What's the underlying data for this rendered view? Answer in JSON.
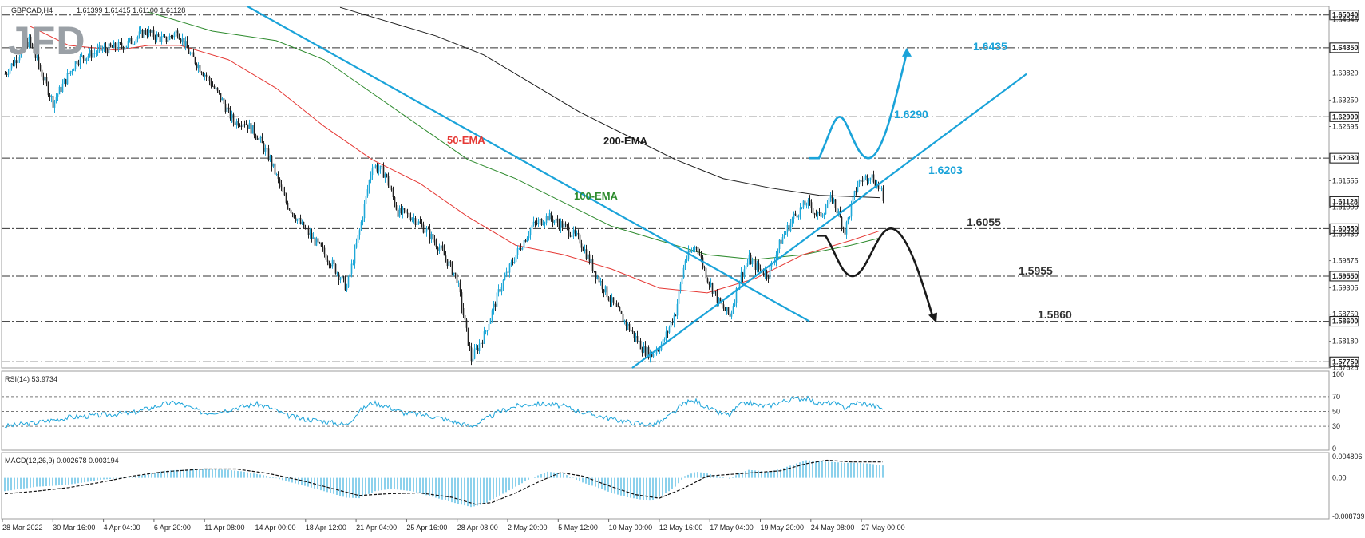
{
  "logo": "JFD",
  "chart_data": {
    "type": "candlestick",
    "symbol_header": "GBPCAD,H4",
    "ohlc_header": "1.61399 1.61415 1.61100 1.61128",
    "price_axis_ticks": [
      "1.64945",
      "1.63820",
      "1.63250",
      "1.62695",
      "1.61555",
      "1.61000",
      "1.60430",
      "1.59875",
      "1.59305",
      "1.58750",
      "1.58180",
      "1.57625"
    ],
    "levels": [
      {
        "value": 1.6504,
        "label": "1.65040"
      },
      {
        "value": 1.6435,
        "label": "1.64350"
      },
      {
        "value": 1.629,
        "label": "1.62900"
      },
      {
        "value": 1.6203,
        "label": "1.62030"
      },
      {
        "value": 1.6112,
        "label": "1.61128"
      },
      {
        "value": 1.6055,
        "label": "1.60550"
      },
      {
        "value": 1.5955,
        "label": "1.59550"
      },
      {
        "value": 1.586,
        "label": "1.58600"
      },
      {
        "value": 1.5775,
        "label": "1.57750"
      }
    ],
    "price_range": [
      1.5762,
      1.6522
    ],
    "x_ticks": [
      "28 Mar 2022",
      "30 Mar 16:00",
      "4 Apr 04:00",
      "6 Apr 20:00",
      "11 Apr 08:00",
      "14 Apr 00:00",
      "18 Apr 12:00",
      "21 Apr 04:00",
      "25 Apr 16:00",
      "28 Apr 08:00",
      "2 May 20:00",
      "5 May 12:00",
      "10 May 00:00",
      "12 May 16:00",
      "17 May 04:00",
      "19 May 20:00",
      "24 May 08:00",
      "27 May 00:00"
    ],
    "anchors": [
      [
        0,
        1.638
      ],
      [
        15,
        1.645
      ],
      [
        30,
        1.632
      ],
      [
        45,
        1.641
      ],
      [
        60,
        1.643
      ],
      [
        75,
        1.644
      ],
      [
        88,
        1.647
      ],
      [
        100,
        1.645
      ],
      [
        108,
        1.647
      ],
      [
        116,
        1.642
      ],
      [
        125,
        1.638
      ],
      [
        135,
        1.633
      ],
      [
        143,
        1.628
      ],
      [
        150,
        1.628
      ],
      [
        158,
        1.625
      ],
      [
        166,
        1.62
      ],
      [
        176,
        1.611
      ],
      [
        186,
        1.606
      ],
      [
        196,
        1.602
      ],
      [
        205,
        1.598
      ],
      [
        214,
        1.593
      ],
      [
        222,
        1.605
      ],
      [
        230,
        1.619
      ],
      [
        238,
        1.617
      ],
      [
        246,
        1.609
      ],
      [
        255,
        1.608
      ],
      [
        264,
        1.605
      ],
      [
        273,
        1.601
      ],
      [
        283,
        1.595
      ],
      [
        292,
        1.578
      ],
      [
        300,
        1.583
      ],
      [
        310,
        1.593
      ],
      [
        320,
        1.6
      ],
      [
        330,
        1.606
      ],
      [
        340,
        1.608
      ],
      [
        350,
        1.606
      ],
      [
        360,
        1.603
      ],
      [
        370,
        1.596
      ],
      [
        380,
        1.59
      ],
      [
        390,
        1.585
      ],
      [
        400,
        1.58
      ],
      [
        405,
        1.579
      ],
      [
        412,
        1.5815
      ],
      [
        420,
        1.588
      ],
      [
        426,
        1.599
      ],
      [
        433,
        1.602
      ],
      [
        440,
        1.595
      ],
      [
        447,
        1.59
      ],
      [
        454,
        1.587
      ],
      [
        460,
        1.595
      ],
      [
        466,
        1.599
      ],
      [
        472,
        1.597
      ],
      [
        478,
        1.596
      ],
      [
        486,
        1.603
      ],
      [
        494,
        1.608
      ],
      [
        502,
        1.611
      ],
      [
        510,
        1.608
      ],
      [
        518,
        1.612
      ],
      [
        526,
        1.605
      ],
      [
        534,
        1.615
      ],
      [
        542,
        1.617
      ],
      [
        550,
        1.6125
      ]
    ],
    "ema50": [
      [
        16,
        1.648
      ],
      [
        40,
        1.644
      ],
      [
        70,
        1.643
      ],
      [
        90,
        1.644
      ],
      [
        110,
        1.644
      ],
      [
        140,
        1.641
      ],
      [
        170,
        1.635
      ],
      [
        200,
        1.627
      ],
      [
        230,
        1.62
      ],
      [
        260,
        1.615
      ],
      [
        290,
        1.608
      ],
      [
        320,
        1.602
      ],
      [
        350,
        1.6
      ],
      [
        380,
        1.597
      ],
      [
        410,
        1.593
      ],
      [
        440,
        1.592
      ],
      [
        470,
        1.595
      ],
      [
        500,
        1.6
      ],
      [
        530,
        1.603
      ],
      [
        548,
        1.605
      ]
    ],
    "ema100": [
      [
        90,
        1.651
      ],
      [
        130,
        1.647
      ],
      [
        170,
        1.645
      ],
      [
        200,
        1.641
      ],
      [
        230,
        1.634
      ],
      [
        260,
        1.627
      ],
      [
        290,
        1.62
      ],
      [
        320,
        1.616
      ],
      [
        350,
        1.611
      ],
      [
        380,
        1.606
      ],
      [
        410,
        1.603
      ],
      [
        440,
        1.6
      ],
      [
        470,
        1.599
      ],
      [
        500,
        1.6
      ],
      [
        530,
        1.602
      ],
      [
        548,
        1.6035
      ]
    ],
    "ema200": [
      [
        210,
        1.652
      ],
      [
        240,
        1.649
      ],
      [
        270,
        1.646
      ],
      [
        300,
        1.642
      ],
      [
        330,
        1.636
      ],
      [
        360,
        1.63
      ],
      [
        390,
        1.625
      ],
      [
        420,
        1.62
      ],
      [
        450,
        1.616
      ],
      [
        480,
        1.614
      ],
      [
        510,
        1.6125
      ],
      [
        548,
        1.612
      ]
    ],
    "rsi": {
      "label": "RSI(14) 53.9734",
      "ticks": [
        "100",
        "70",
        "50",
        "30",
        "0"
      ],
      "levels": [
        70,
        50,
        30
      ],
      "points": [
        [
          0,
          30
        ],
        [
          20,
          35
        ],
        [
          40,
          42
        ],
        [
          60,
          45
        ],
        [
          80,
          48
        ],
        [
          100,
          60
        ],
        [
          108,
          62
        ],
        [
          116,
          55
        ],
        [
          125,
          48
        ],
        [
          135,
          50
        ],
        [
          145,
          55
        ],
        [
          158,
          60
        ],
        [
          166,
          55
        ],
        [
          176,
          45
        ],
        [
          186,
          40
        ],
        [
          196,
          38
        ],
        [
          205,
          35
        ],
        [
          214,
          32
        ],
        [
          222,
          50
        ],
        [
          230,
          62
        ],
        [
          238,
          58
        ],
        [
          250,
          48
        ],
        [
          264,
          45
        ],
        [
          275,
          40
        ],
        [
          283,
          35
        ],
        [
          292,
          30
        ],
        [
          300,
          38
        ],
        [
          310,
          50
        ],
        [
          320,
          57
        ],
        [
          330,
          60
        ],
        [
          340,
          60
        ],
        [
          350,
          57
        ],
        [
          360,
          50
        ],
        [
          370,
          45
        ],
        [
          380,
          40
        ],
        [
          390,
          36
        ],
        [
          400,
          33
        ],
        [
          405,
          32
        ],
        [
          412,
          37
        ],
        [
          420,
          50
        ],
        [
          426,
          62
        ],
        [
          433,
          64
        ],
        [
          440,
          55
        ],
        [
          447,
          48
        ],
        [
          454,
          45
        ],
        [
          460,
          58
        ],
        [
          466,
          62
        ],
        [
          472,
          58
        ],
        [
          478,
          57
        ],
        [
          486,
          63
        ],
        [
          494,
          67
        ],
        [
          502,
          68
        ],
        [
          510,
          60
        ],
        [
          518,
          62
        ],
        [
          526,
          55
        ],
        [
          534,
          62
        ],
        [
          542,
          59
        ],
        [
          550,
          54
        ]
      ]
    },
    "macd": {
      "label": "MACD(12,26,9) 0.002678 0.003194",
      "ticks": [
        "0.004806",
        "0.00",
        "-0.008739"
      ],
      "range": [
        -0.008739,
        0.004806
      ],
      "histogram": [
        [
          0,
          -0.003
        ],
        [
          10,
          -0.0025
        ],
        [
          20,
          -0.002
        ],
        [
          30,
          -0.0018
        ],
        [
          40,
          -0.0015
        ],
        [
          50,
          -0.001
        ],
        [
          60,
          -0.0004
        ],
        [
          75,
          0.0
        ],
        [
          90,
          0.0008
        ],
        [
          100,
          0.0016
        ],
        [
          110,
          0.0018
        ],
        [
          125,
          0.002
        ],
        [
          140,
          0.0018
        ],
        [
          150,
          0.0014
        ],
        [
          165,
          0.0004
        ],
        [
          175,
          -0.0006
        ],
        [
          186,
          -0.0016
        ],
        [
          200,
          -0.003
        ],
        [
          214,
          -0.0045
        ],
        [
          222,
          -0.0046
        ],
        [
          232,
          -0.003
        ],
        [
          242,
          -0.0025
        ],
        [
          255,
          -0.003
        ],
        [
          265,
          -0.004
        ],
        [
          275,
          -0.005
        ],
        [
          283,
          -0.0058
        ],
        [
          292,
          -0.0066
        ],
        [
          300,
          -0.006
        ],
        [
          310,
          -0.004
        ],
        [
          320,
          -0.002
        ],
        [
          330,
          0.0
        ],
        [
          340,
          0.0014
        ],
        [
          350,
          0.001
        ],
        [
          360,
          -0.0008
        ],
        [
          370,
          -0.002
        ],
        [
          380,
          -0.0034
        ],
        [
          390,
          -0.0044
        ],
        [
          400,
          -0.005
        ],
        [
          405,
          -0.0052
        ],
        [
          412,
          -0.004
        ],
        [
          420,
          -0.002
        ],
        [
          426,
          0.0004
        ],
        [
          433,
          0.0014
        ],
        [
          440,
          0.001
        ],
        [
          447,
          0.0004
        ],
        [
          454,
          -0.0002
        ],
        [
          460,
          0.001
        ],
        [
          466,
          0.0018
        ],
        [
          472,
          0.0016
        ],
        [
          478,
          0.0014
        ],
        [
          486,
          0.002
        ],
        [
          494,
          0.003
        ],
        [
          502,
          0.004
        ],
        [
          510,
          0.0038
        ],
        [
          518,
          0.0036
        ],
        [
          526,
          0.0034
        ],
        [
          534,
          0.0034
        ],
        [
          542,
          0.0032
        ],
        [
          550,
          0.0028
        ]
      ],
      "signal": [
        [
          0,
          -0.0036
        ],
        [
          20,
          -0.003
        ],
        [
          40,
          -0.0022
        ],
        [
          60,
          -0.001
        ],
        [
          80,
          0.0004
        ],
        [
          100,
          0.0014
        ],
        [
          125,
          0.002
        ],
        [
          145,
          0.002
        ],
        [
          165,
          0.001
        ],
        [
          186,
          -0.0006
        ],
        [
          205,
          -0.0024
        ],
        [
          222,
          -0.004
        ],
        [
          240,
          -0.0036
        ],
        [
          260,
          -0.0034
        ],
        [
          280,
          -0.0044
        ],
        [
          295,
          -0.006
        ],
        [
          305,
          -0.0056
        ],
        [
          320,
          -0.0034
        ],
        [
          335,
          -0.0008
        ],
        [
          348,
          0.0012
        ],
        [
          362,
          0.0004
        ],
        [
          380,
          -0.002
        ],
        [
          395,
          -0.0038
        ],
        [
          410,
          -0.0046
        ],
        [
          425,
          -0.0024
        ],
        [
          440,
          0.0004
        ],
        [
          455,
          0.0008
        ],
        [
          470,
          0.0012
        ],
        [
          486,
          0.0016
        ],
        [
          502,
          0.0032
        ],
        [
          515,
          0.004
        ],
        [
          530,
          0.0036
        ],
        [
          550,
          0.0036
        ]
      ]
    },
    "annotations": {
      "ema50_label": "50-EMA",
      "ema100_label": "100-EMA",
      "ema200_label": "200-EMA",
      "bull": [
        {
          "value": 1.6435,
          "label": "1.6435"
        },
        {
          "value": 1.629,
          "label": "1.6290"
        },
        {
          "value": 1.6203,
          "label": "1.6203"
        }
      ],
      "bear": [
        {
          "value": 1.6055,
          "label": "1.6055"
        },
        {
          "value": 1.5955,
          "label": "1.5955"
        },
        {
          "value": 1.586,
          "label": "1.5860"
        }
      ]
    },
    "colors": {
      "bull_candle": "#1fa8d8",
      "bear_candle": "#222222",
      "ema50": "#e53935",
      "ema100": "#2e8b2e",
      "ema200": "#1a1a1a",
      "trendline": "#1aa3d9",
      "bull_path": "#1aa3d9",
      "bear_path": "#1a1a1a",
      "rsi_line": "#1aa3d9",
      "macd_hist": "#1aa3d9",
      "macd_signal": "#111111",
      "logo": "#9aa0a6"
    }
  }
}
